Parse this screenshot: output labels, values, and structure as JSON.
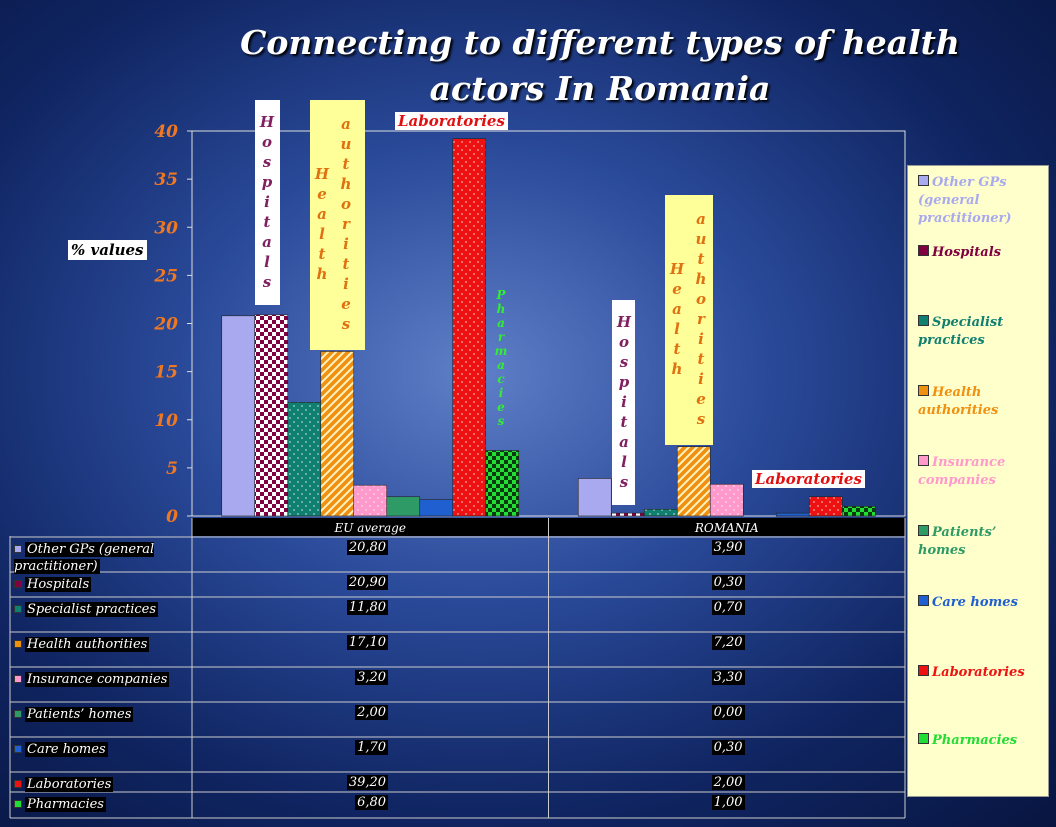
{
  "chart_data": {
    "type": "bar",
    "title": "Connecting to different types of health actors In Romania",
    "y_label": "% values",
    "categories": [
      "EU average",
      "ROMANIA"
    ],
    "ylim": [
      0,
      40
    ],
    "yticks": [
      0,
      5,
      10,
      15,
      20,
      25,
      30,
      35,
      40
    ],
    "grid": false,
    "legend": "right",
    "series": [
      {
        "name": "Other GPs (general practitioner)",
        "color": "#a9a9f0",
        "pattern": "solid",
        "values": [
          20.8,
          3.9
        ],
        "value_labels": [
          "20,80",
          "3,90"
        ]
      },
      {
        "name": "Hospitals",
        "color": "#800040",
        "pattern": "checkered",
        "values": [
          20.9,
          0.3
        ],
        "value_labels": [
          "20,90",
          "0,30"
        ]
      },
      {
        "name": "Specialist practices",
        "color": "#0f7f70",
        "pattern": "dotted",
        "values": [
          11.8,
          0.7
        ],
        "value_labels": [
          "11,80",
          "0,70"
        ]
      },
      {
        "name": "Health authorities",
        "color": "#f09010",
        "pattern": "diagonal",
        "values": [
          17.1,
          7.2
        ],
        "value_labels": [
          "17,10",
          "7,20"
        ]
      },
      {
        "name": "Insurance companies",
        "color": "#ff99cc",
        "pattern": "dotted",
        "values": [
          3.2,
          3.3
        ],
        "value_labels": [
          "3,20",
          "3,30"
        ]
      },
      {
        "name": "Patients’ homes",
        "color": "#2e9a66",
        "pattern": "solid",
        "values": [
          2.0,
          0.0
        ],
        "value_labels": [
          "2,00",
          "0,00"
        ]
      },
      {
        "name": "Care homes",
        "color": "#1f5fcf",
        "pattern": "solid",
        "values": [
          1.7,
          0.3
        ],
        "value_labels": [
          "1,70",
          "0,30"
        ]
      },
      {
        "name": "Laboratories",
        "color": "#ee1111",
        "pattern": "dotted",
        "values": [
          39.2,
          2.0
        ],
        "value_labels": [
          "39,20",
          "2,00"
        ]
      },
      {
        "name": "Pharmacies",
        "color": "#22dd33",
        "pattern": "checkered",
        "values": [
          6.8,
          1.0
        ],
        "value_labels": [
          "6,80",
          "1,00"
        ]
      }
    ],
    "annotations": [
      "Hospitals",
      "Health authorities",
      "Laboratories",
      "Pharmacies",
      "Hospitals",
      "Health authorities",
      "Laboratories"
    ]
  }
}
